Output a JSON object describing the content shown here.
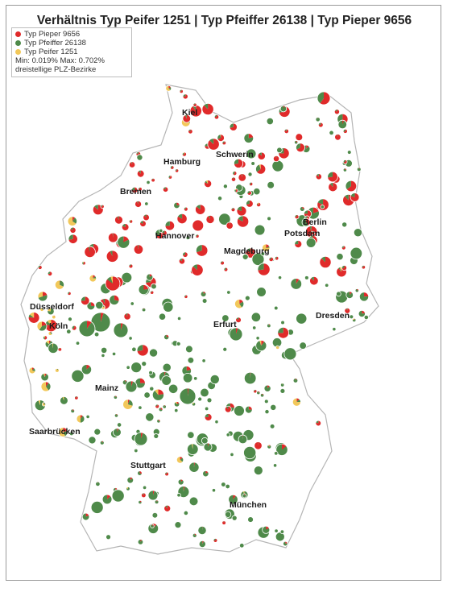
{
  "title": "Verhältnis Typ Peifer 1251 | Typ Pfeiffer 26138 | Typ Pieper 9656",
  "legend": {
    "items": [
      {
        "label": "Typ Pieper 9656",
        "color": "#e02a2a"
      },
      {
        "label": "Typ Pfeiffer 26138",
        "color": "#4f8a4a"
      },
      {
        "label": "Typ Peifer 1251",
        "color": "#f2c85a"
      }
    ],
    "range": "Min: 0.019% Max: 0.702%",
    "note": "dreistellige PLZ-Bezirke"
  },
  "colors": {
    "pieper": "#e02a2a",
    "pfeiffer": "#4f8a4a",
    "peifer": "#f2c85a",
    "border": "#b5b5b5"
  },
  "cities": [
    {
      "name": "Kiel"
    },
    {
      "name": "Hamburg"
    },
    {
      "name": "Schwerin"
    },
    {
      "name": "Bremen"
    },
    {
      "name": "Berlin"
    },
    {
      "name": "Potsdam"
    },
    {
      "name": "Hannover"
    },
    {
      "name": "Magdeburg"
    },
    {
      "name": "Düsseldorf"
    },
    {
      "name": "Köln"
    },
    {
      "name": "Erfurt"
    },
    {
      "name": "Dresden"
    },
    {
      "name": "Mainz"
    },
    {
      "name": "Saarbrücken"
    },
    {
      "name": "Stuttgart"
    },
    {
      "name": "München"
    }
  ]
}
